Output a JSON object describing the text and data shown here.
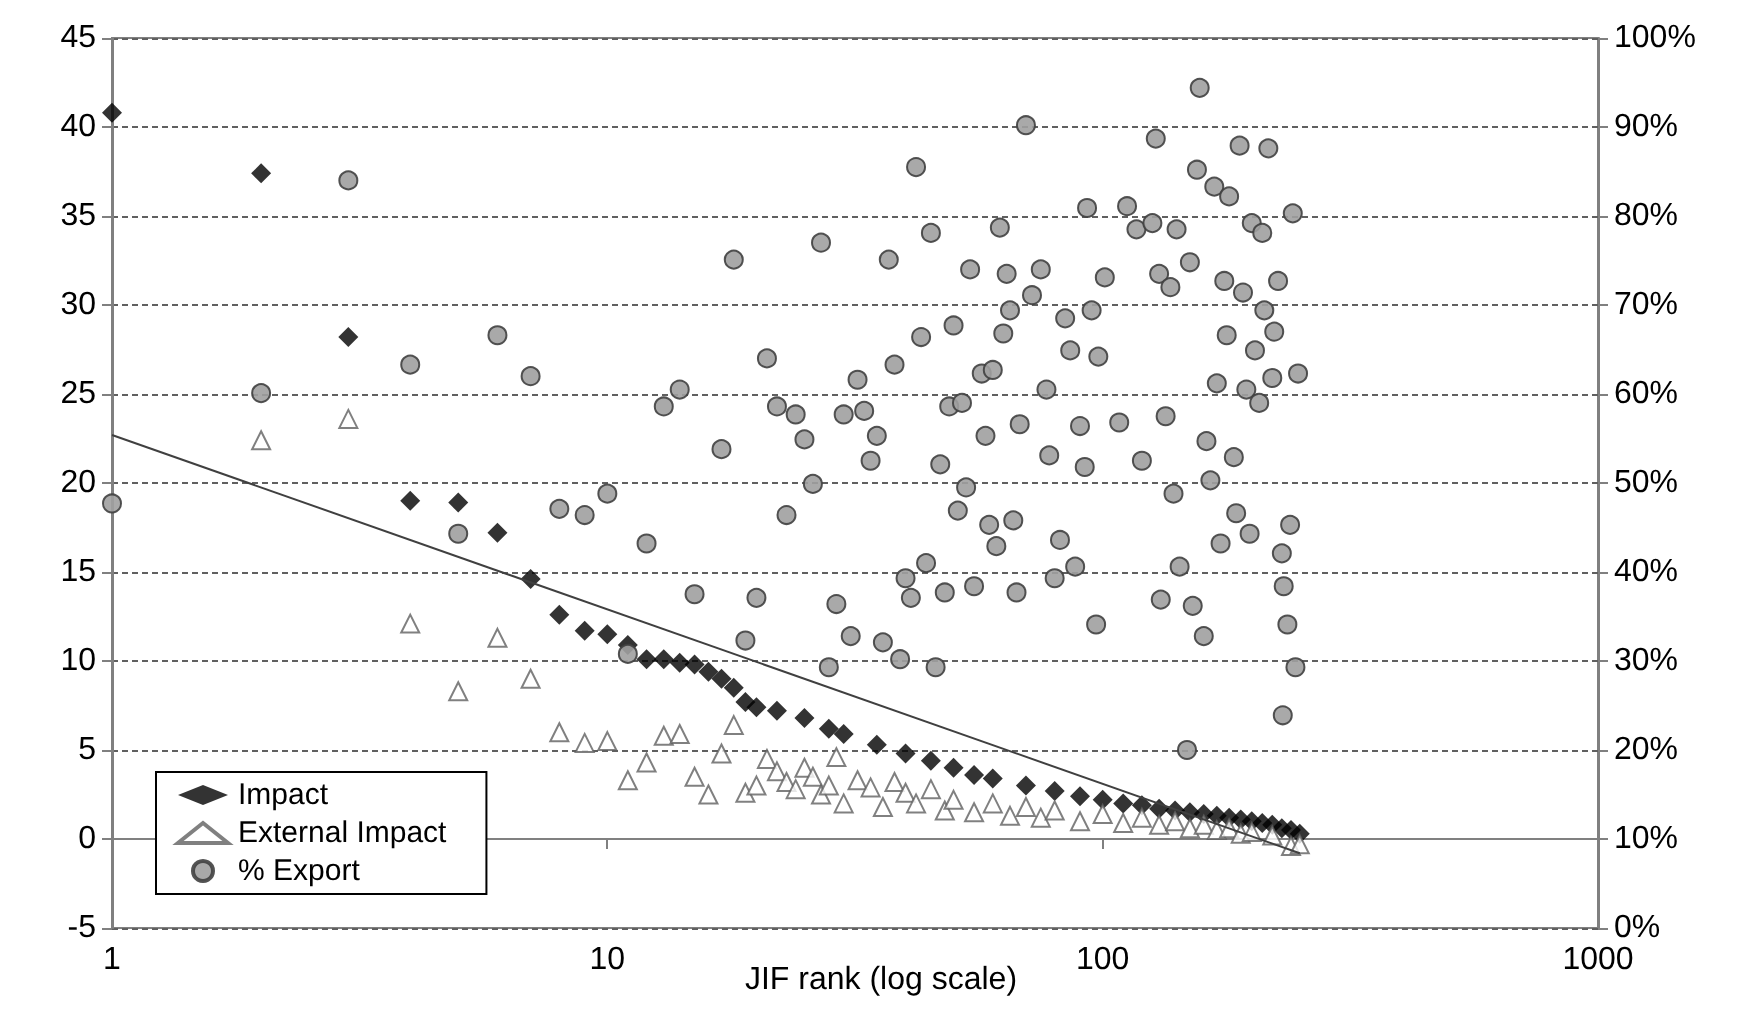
{
  "chart_data": {
    "type": "scatter",
    "xlabel": "JIF rank (log scale)",
    "log": "x",
    "grid": "y",
    "legend": "bottom left",
    "xlim": [
      1,
      1000
    ],
    "xticks": [
      1,
      10,
      100,
      1000
    ],
    "ylim": [
      -5,
      45
    ],
    "yticks": [
      -5,
      0,
      5,
      10,
      15,
      20,
      25,
      30,
      35,
      40,
      45
    ],
    "y2lim": [
      0,
      100
    ],
    "y2ticks": [
      {
        "value": 0,
        "label": "0%"
      },
      {
        "value": 10,
        "label": "10%"
      },
      {
        "value": 20,
        "label": "20%"
      },
      {
        "value": 30,
        "label": "30%"
      },
      {
        "value": 40,
        "label": "40%"
      },
      {
        "value": 50,
        "label": "50%"
      },
      {
        "value": 60,
        "label": "60%"
      },
      {
        "value": 70,
        "label": "70%"
      },
      {
        "value": 80,
        "label": "80%"
      },
      {
        "value": 90,
        "label": "90%"
      },
      {
        "value": 100,
        "label": "100%"
      }
    ],
    "series": [
      {
        "name": "Impact",
        "marker": "diamond",
        "color": "#000000",
        "x": [
          1,
          2,
          3,
          4,
          5,
          6,
          7,
          8,
          9,
          10,
          11,
          12,
          13,
          14,
          15,
          16,
          17,
          18,
          19,
          20,
          22,
          25,
          28,
          30,
          35,
          40,
          45,
          50,
          55,
          60,
          70,
          80,
          90,
          100,
          110,
          120,
          130,
          140,
          150,
          160,
          170,
          180,
          190,
          200,
          210,
          220,
          230,
          240,
          250
        ],
        "values": [
          40.8,
          37.4,
          28.2,
          19.0,
          18.9,
          17.2,
          14.6,
          12.6,
          11.7,
          11.5,
          10.9,
          10.1,
          10.1,
          9.9,
          9.8,
          9.4,
          9.0,
          8.5,
          7.7,
          7.4,
          7.2,
          6.8,
          6.2,
          5.9,
          5.3,
          4.8,
          4.4,
          4.0,
          3.6,
          3.4,
          3.0,
          2.7,
          2.4,
          2.2,
          2.0,
          1.9,
          1.7,
          1.6,
          1.5,
          1.4,
          1.3,
          1.2,
          1.1,
          1.0,
          0.9,
          0.8,
          0.6,
          0.5,
          0.3
        ]
      },
      {
        "name": "External Impact",
        "marker": "triangle",
        "color": "#606060",
        "x": [
          2,
          3,
          4,
          5,
          6,
          7,
          8,
          9,
          10,
          11,
          12,
          13,
          14,
          15,
          16,
          17,
          18,
          19,
          20,
          21,
          22,
          23,
          24,
          25,
          26,
          27,
          28,
          29,
          30,
          32,
          34,
          36,
          38,
          40,
          42,
          45,
          48,
          50,
          55,
          60,
          65,
          70,
          75,
          80,
          90,
          100,
          110,
          120,
          130,
          140,
          150,
          160,
          170,
          180,
          190,
          200,
          220,
          240,
          250
        ],
        "values": [
          22.4,
          23.6,
          12.1,
          8.3,
          11.3,
          9.0,
          6.0,
          5.4,
          5.5,
          3.3,
          4.3,
          5.8,
          5.9,
          3.5,
          2.5,
          4.8,
          6.4,
          2.6,
          3.0,
          4.5,
          3.8,
          3.2,
          2.8,
          4.0,
          3.5,
          2.5,
          3.0,
          4.6,
          2.0,
          3.3,
          2.9,
          1.8,
          3.2,
          2.6,
          2.0,
          2.8,
          1.6,
          2.2,
          1.5,
          2.0,
          1.3,
          1.8,
          1.2,
          1.6,
          1.0,
          1.4,
          0.9,
          1.2,
          0.8,
          1.0,
          0.6,
          0.8,
          0.5,
          0.6,
          0.3,
          0.4,
          0.2,
          -0.4,
          -0.3
        ]
      },
      {
        "name": "% Export",
        "axis": "y2",
        "marker": "circle",
        "color": "#a0a0a0",
        "x": [
          1,
          2,
          3,
          4,
          5,
          6,
          7,
          8,
          9,
          10,
          11,
          12,
          13,
          14,
          15,
          17,
          18,
          19,
          20,
          21,
          22,
          23,
          24,
          25,
          26,
          27,
          28,
          29,
          30,
          31,
          32,
          33,
          34,
          35,
          36,
          37,
          38,
          39,
          40,
          41,
          42,
          43,
          44,
          45,
          46,
          47,
          48,
          49,
          50,
          51,
          52,
          53,
          54,
          55,
          57,
          58,
          59,
          60,
          61,
          62,
          63,
          64,
          65,
          66,
          67,
          68,
          70,
          72,
          75,
          77,
          78,
          80,
          82,
          84,
          86,
          88,
          90,
          92,
          93,
          95,
          97,
          98,
          101,
          108,
          112,
          117,
          120,
          126,
          128,
          130,
          131,
          134,
          137,
          139,
          141,
          143,
          148,
          150,
          152,
          155,
          157,
          160,
          162,
          165,
          168,
          170,
          173,
          176,
          178,
          180,
          184,
          186,
          189,
          192,
          195,
          198,
          200,
          203,
          207,
          210,
          212,
          216,
          220,
          222,
          226,
          230,
          231,
          232,
          236,
          239,
          242,
          245,
          248
        ],
        "values": [
          47.7,
          60.1,
          84.0,
          63.3,
          44.3,
          66.6,
          62.0,
          47.1,
          46.4,
          48.8,
          30.8,
          43.2,
          58.6,
          60.5,
          37.5,
          53.8,
          75.1,
          32.3,
          37.1,
          64.0,
          58.6,
          46.4,
          57.7,
          54.9,
          49.9,
          77.0,
          29.3,
          36.4,
          57.7,
          32.8,
          61.6,
          58.1,
          52.5,
          55.3,
          32.1,
          75.1,
          63.3,
          30.2,
          39.3,
          37.1,
          85.5,
          66.4,
          41.0,
          78.1,
          29.3,
          52.1,
          37.7,
          58.6,
          67.7,
          46.9,
          59.0,
          49.5,
          74.0,
          38.4,
          62.3,
          55.3,
          45.3,
          62.7,
          42.9,
          78.7,
          66.8,
          73.5,
          69.4,
          45.8,
          37.7,
          56.6,
          90.2,
          71.1,
          74.0,
          60.5,
          53.1,
          39.3,
          43.6,
          68.5,
          64.9,
          40.6,
          56.4,
          51.8,
          80.9,
          69.4,
          34.1,
          64.2,
          73.1,
          56.8,
          81.1,
          78.5,
          52.5,
          79.2,
          88.7,
          73.5,
          36.9,
          57.5,
          72.0,
          48.8,
          78.5,
          40.6,
          20.0,
          74.8,
          36.2,
          85.2,
          94.4,
          32.8,
          54.7,
          50.3,
          83.3,
          61.2,
          43.2,
          72.7,
          66.6,
          82.2,
          52.9,
          46.6,
          87.9,
          71.4,
          60.5,
          44.3,
          79.2,
          64.9,
          59.0,
          78.1,
          69.4,
          87.6,
          61.8,
          67.0,
          72.7,
          42.1,
          23.9,
          38.4,
          34.1,
          45.3,
          80.3,
          29.3,
          62.3
        ]
      },
      {
        "type": "line",
        "marker": "none",
        "color": "#404040",
        "x": [
          1,
          250
        ],
        "values": [
          22.7,
          -0.8
        ]
      }
    ]
  }
}
